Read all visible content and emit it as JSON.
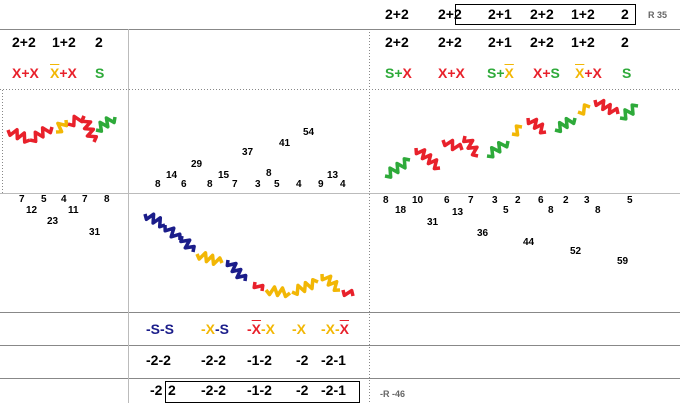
{
  "top_row": {
    "labels": [
      "2+2",
      "2+2",
      "2+1",
      "2+2",
      "1+2",
      "2"
    ],
    "note": "R 35"
  },
  "row2_left": [
    "2+2",
    "1+2",
    "2"
  ],
  "row2_right": [
    "2+2",
    "2+2",
    "2+1",
    "2+2",
    "1+2",
    "2"
  ],
  "row3_left": [
    [
      "X+X"
    ],
    [
      "X",
      "+X"
    ],
    [
      "S"
    ]
  ],
  "row3_right": [
    [
      "S+",
      "X"
    ],
    [
      "X+X"
    ],
    [
      "S+",
      "X"
    ],
    [
      "X+",
      "S"
    ],
    [
      "X",
      "+X"
    ],
    [
      "S"
    ]
  ],
  "numbers_left": [
    "7",
    "5",
    "4",
    "7",
    "8",
    "12",
    "11",
    "23",
    "31"
  ],
  "numbers_center": [
    "54",
    "41",
    "37",
    "29",
    "14",
    "15",
    "8",
    "13",
    "8",
    "6",
    "8",
    "7",
    "3",
    "5",
    "4",
    "9",
    "4"
  ],
  "numbers_right": [
    "8",
    "10",
    "6",
    "7",
    "3",
    "2",
    "6",
    "2",
    "3",
    "5",
    "18",
    "13",
    "5",
    "8",
    "8",
    "31",
    "36",
    "44",
    "52",
    "59"
  ],
  "bottom_row1": [
    [
      "-S-S"
    ],
    [
      "-X",
      "-S"
    ],
    [
      "-",
      "X",
      "-X"
    ],
    [
      "-X"
    ],
    [
      "-X-",
      "X"
    ]
  ],
  "bottom_row2": [
    "-2-2",
    "-2-2",
    "-1-2",
    "-2",
    "-2-1"
  ],
  "bottom_row3": [
    "-2",
    "2",
    "-2-2",
    "-1-2",
    "-2",
    "-2-1"
  ],
  "bottom_note": "-R -46"
}
